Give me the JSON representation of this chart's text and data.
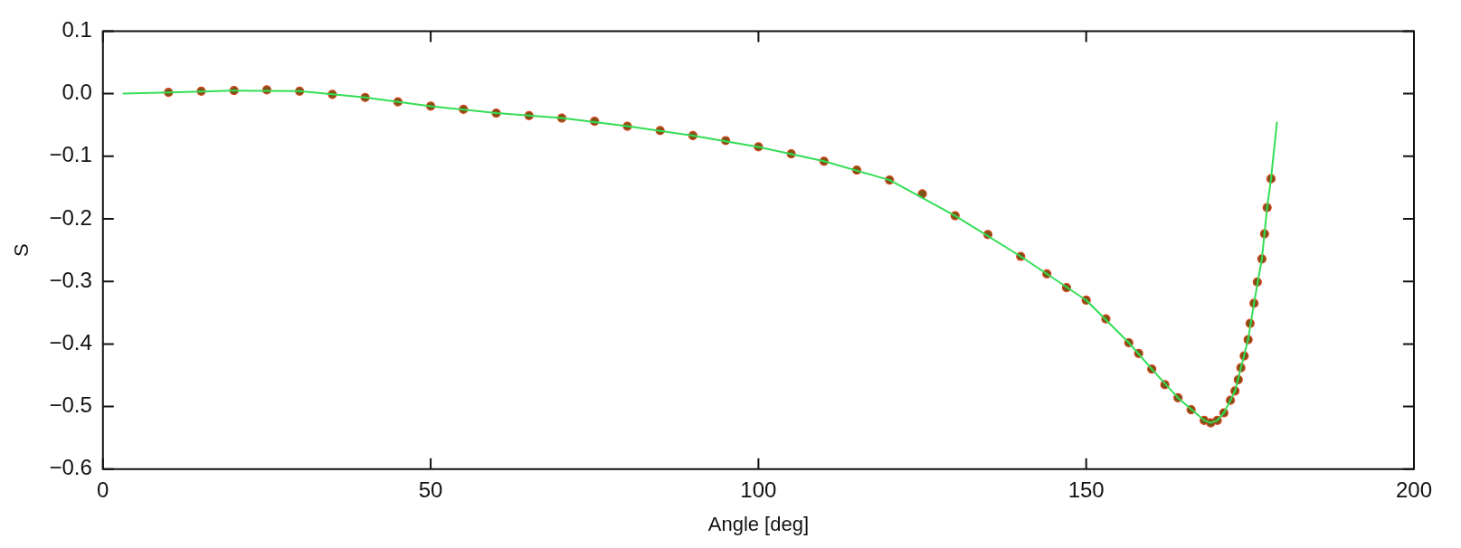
{
  "chart_data": {
    "type": "line",
    "xlabel": "Angle [deg]",
    "ylabel": "S",
    "xlim": [
      0,
      200
    ],
    "ylim": [
      -0.6,
      0.1
    ],
    "xticks": [
      0,
      50,
      100,
      150,
      200
    ],
    "yticks": [
      -0.6,
      -0.5,
      -0.4,
      -0.3,
      -0.2,
      -0.1,
      {
        "value": 0,
        "label": "0.0"
      },
      0.1
    ],
    "grid": false,
    "legend": false,
    "series": [
      {
        "type": "scatter",
        "marker": "circle",
        "color": "#7a5418",
        "x": [
          10,
          15,
          20,
          25,
          30,
          35,
          40,
          45,
          50,
          55,
          60,
          65,
          70,
          75,
          80,
          85,
          90,
          95,
          100,
          105,
          110,
          115,
          120,
          125,
          130,
          135,
          140,
          144,
          147,
          150,
          153,
          156.5,
          158,
          160,
          162,
          164,
          166,
          168,
          169,
          170,
          171,
          172,
          172.7,
          173.2,
          173.6,
          174.1,
          174.7,
          175.0,
          175.6,
          176.1,
          176.8,
          177.2,
          177.6,
          178.2
        ],
        "values": [
          0.002,
          0.004,
          0.005,
          0.006,
          0.004,
          -0.001,
          -0.006,
          -0.013,
          -0.02,
          -0.025,
          -0.031,
          -0.035,
          -0.039,
          -0.044,
          -0.052,
          -0.059,
          -0.067,
          -0.075,
          -0.085,
          -0.096,
          -0.108,
          -0.122,
          -0.138,
          -0.16,
          -0.195,
          -0.225,
          -0.26,
          -0.288,
          -0.31,
          -0.33,
          -0.36,
          -0.398,
          -0.415,
          -0.44,
          -0.465,
          -0.486,
          -0.505,
          -0.522,
          -0.526,
          -0.522,
          -0.51,
          -0.49,
          -0.475,
          -0.457,
          -0.438,
          -0.419,
          -0.393,
          -0.367,
          -0.335,
          -0.301,
          -0.264,
          -0.224,
          -0.182,
          -0.136
        ]
      },
      {
        "type": "line",
        "marker": "none",
        "color": "#33dd55",
        "x": [
          3,
          10,
          20,
          30,
          40,
          50,
          60,
          70,
          80,
          90,
          100,
          110,
          120,
          130,
          140,
          150,
          156.5,
          160,
          164,
          168,
          169,
          170,
          171,
          172,
          172.7,
          173.6,
          174.7,
          175.6,
          176.8,
          177.6,
          178.2,
          179.1
        ],
        "values": [
          0,
          0.002,
          0.005,
          0.004,
          -0.006,
          -0.02,
          -0.031,
          -0.039,
          -0.052,
          -0.067,
          -0.085,
          -0.108,
          -0.138,
          -0.195,
          -0.26,
          -0.33,
          -0.398,
          -0.44,
          -0.486,
          -0.522,
          -0.526,
          -0.522,
          -0.51,
          -0.49,
          -0.475,
          -0.438,
          -0.393,
          -0.335,
          -0.264,
          -0.182,
          -0.136,
          -0.045
        ]
      }
    ]
  }
}
